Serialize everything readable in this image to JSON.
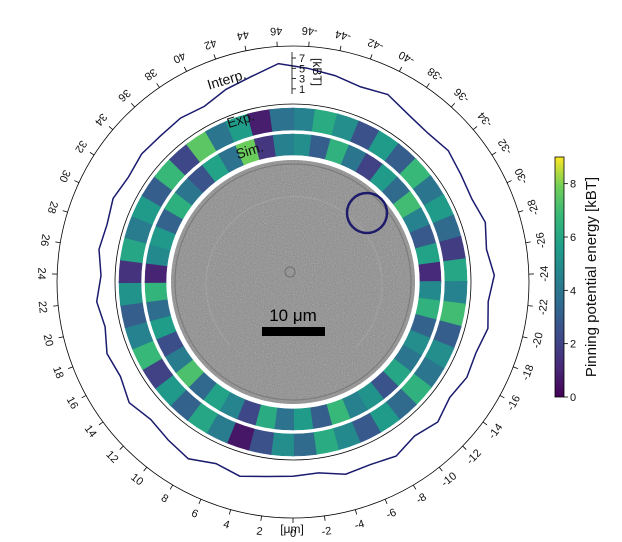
{
  "chart_data": {
    "type": "polar-line-with-rings",
    "angular_axis": {
      "unit_label": "[μm]",
      "ticks": [
        "0",
        "2",
        "4",
        "6",
        "8",
        "10",
        "12",
        "14",
        "16",
        "18",
        "20",
        "22",
        "24",
        "26",
        "28",
        "30",
        "32",
        "34",
        "36",
        "38",
        "40",
        "42",
        "44",
        "46",
        "-46",
        "-44",
        "-42",
        "-40",
        "-38",
        "-36",
        "-34",
        "-32",
        "-30",
        "-28",
        "-26",
        "-24",
        "-22",
        "-20",
        "-18",
        "-16",
        "-14",
        "-12",
        "-10",
        "-8",
        "-6",
        "-4",
        "-2"
      ]
    },
    "radial_axis": {
      "unit_label": "[kBT]",
      "ticks": [
        "1",
        "3",
        "5",
        "7"
      ],
      "range": [
        0,
        7
      ]
    },
    "ring_labels": {
      "interp": "Interp.",
      "exp": "Exp.",
      "sim": "Sim."
    },
    "scale_bar_label": "10 μm",
    "colorbar": {
      "label": "Pinning potential energy [kBT]",
      "ticks": [
        "0",
        "2",
        "4",
        "6",
        "8"
      ],
      "range": [
        0,
        9
      ],
      "colormap": "viridis"
    },
    "interp_curve": {
      "x_um": [
        0,
        2,
        4,
        6,
        8,
        10,
        12,
        14,
        16,
        18,
        20,
        22,
        24,
        26,
        28,
        30,
        32,
        34,
        36,
        38,
        40,
        42,
        44,
        46,
        -46,
        -44,
        -42,
        -40,
        -38,
        -36,
        -34,
        -32,
        -30,
        -28,
        -26,
        -24,
        -22,
        -20,
        -18,
        -16,
        -14,
        -12,
        -10,
        -8,
        -6,
        -4,
        -2
      ],
      "energy_kBT": [
        1.2,
        1.6,
        2.6,
        1.8,
        3.4,
        2.6,
        1.9,
        3.0,
        1.7,
        2.2,
        1.0,
        1.8,
        0.8,
        1.7,
        1.3,
        2.0,
        1.4,
        2.0,
        1.8,
        2.1,
        1.7,
        3.1,
        4.2,
        6.0,
        5.1,
        4.4,
        3.6,
        4.3,
        3.0,
        2.5,
        3.0,
        2.2,
        1.8,
        2.6,
        1.6,
        2.6,
        1.6,
        2.4,
        1.6,
        2.0,
        1.3,
        2.6,
        1.6,
        2.8,
        2.0,
        2.2,
        0.9
      ]
    },
    "exp_ring_energy_kBT": [
      4.5,
      6.2,
      5.0,
      2.5,
      5.5,
      3.0,
      6.8,
      4.0,
      5.5,
      3.5,
      1.8,
      6.0,
      4.5,
      7.0,
      3.0,
      5.0,
      4.0,
      6.5,
      3.5,
      5.5,
      2.8,
      4.8,
      6.2,
      3.5,
      5.0,
      2.5,
      0.6,
      4.2,
      6.0,
      3.2,
      5.4,
      2.0,
      6.8,
      4.5,
      3.0,
      5.2,
      1.5,
      6.0,
      4.2,
      5.5,
      3.0,
      6.8,
      2.2,
      7.5,
      4.0,
      5.6,
      0.8,
      3.8
    ],
    "sim_ring_energy_kBT": [
      5.0,
      3.0,
      6.5,
      4.0,
      2.0,
      5.5,
      3.5,
      7.0,
      4.5,
      2.8,
      5.8,
      1.2,
      4.8,
      6.5,
      3.2,
      5.0,
      4.0,
      6.0,
      2.6,
      5.2,
      4.4,
      6.8,
      3.0,
      5.5,
      3.8,
      6.2,
      2.2,
      4.6,
      5.8,
      3.4,
      7.2,
      4.2,
      2.4,
      5.6,
      3.6,
      6.6,
      1.0,
      4.8,
      5.4,
      3.2,
      6.4,
      4.0,
      2.6,
      5.8,
      3.8,
      7.8,
      1.6,
      4.4
    ]
  }
}
